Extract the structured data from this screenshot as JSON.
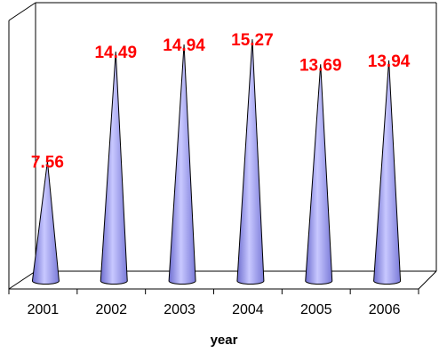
{
  "chart_data": {
    "type": "bar",
    "bar_shape": "cone",
    "categories": [
      "2001",
      "2002",
      "2003",
      "2004",
      "2005",
      "2006"
    ],
    "values": [
      7.56,
      14.49,
      14.94,
      15.27,
      13.69,
      13.94
    ],
    "data_labels": [
      "7.56",
      "14.49",
      "14.94",
      "15.27",
      "13.69",
      "13.94"
    ],
    "title": "",
    "xlabel": "year",
    "ylabel": "",
    "ylim": [
      0,
      16
    ],
    "y_ticks_shown": false,
    "grid": false,
    "legend": "none",
    "colors": {
      "bar_fill": "#8f8fe6",
      "bar_edge": "#000000",
      "data_label": "#ff0000",
      "axis": "#000000"
    }
  }
}
